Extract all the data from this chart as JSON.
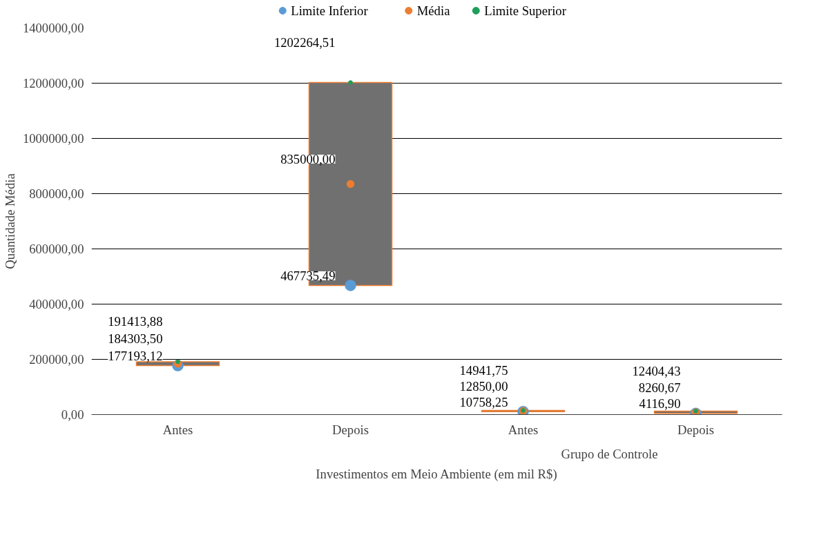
{
  "chart_data": {
    "type": "bar",
    "xlabel": "Investimentos em Meio Ambiente (em mil R$)",
    "ylabel": "Quantidade Média",
    "categories": [
      "Antes",
      "Depois",
      "Antes",
      "Depois"
    ],
    "annotations": [
      "Grupo de Controle"
    ],
    "ylim": [
      0,
      1400000
    ],
    "yticks": [
      {
        "value": 0,
        "label": "0,00"
      },
      {
        "value": 200000,
        "label": "200000,00"
      },
      {
        "value": 400000,
        "label": "400000,00"
      },
      {
        "value": 600000,
        "label": "600000,00"
      },
      {
        "value": 800000,
        "label": "800000,00"
      },
      {
        "value": 1000000,
        "label": "1000000,00"
      },
      {
        "value": 1200000,
        "label": "1200000,00"
      },
      {
        "value": 1400000,
        "label": "1400000,00"
      }
    ],
    "grid": "y",
    "legend": "top",
    "marker": "circle",
    "series": [
      {
        "type": "bar",
        "color": "#707070",
        "base": [
          177193.12,
          467735.49,
          10758.25,
          4116.9
        ],
        "values": [
          14220.76,
          734529.02,
          4183.5,
          8287.53
        ]
      },
      {
        "type": "scatter",
        "name": "Limite Inferior",
        "color": "#5b9bd5",
        "values": [
          177193.12,
          467735.49,
          10758.25,
          4116.9
        ],
        "value_labels": [
          "177193,12",
          "467735,49",
          "10758,25",
          "4116,90"
        ]
      },
      {
        "type": "scatter",
        "name": "Média",
        "color": "#ed7d31",
        "values": [
          184303.5,
          835000.0,
          12850.0,
          8260.67
        ],
        "value_labels": [
          "184303,50",
          "835000,00",
          "12850,00",
          "8260,67"
        ]
      },
      {
        "type": "scatter",
        "name": "Limite Superior",
        "color": "#1e9e5a",
        "values": [
          191413.88,
          1202264.51,
          14941.75,
          12404.43
        ],
        "value_labels": [
          "191413,88",
          "1202264,51",
          "14941,75",
          "12404,43"
        ]
      }
    ]
  }
}
